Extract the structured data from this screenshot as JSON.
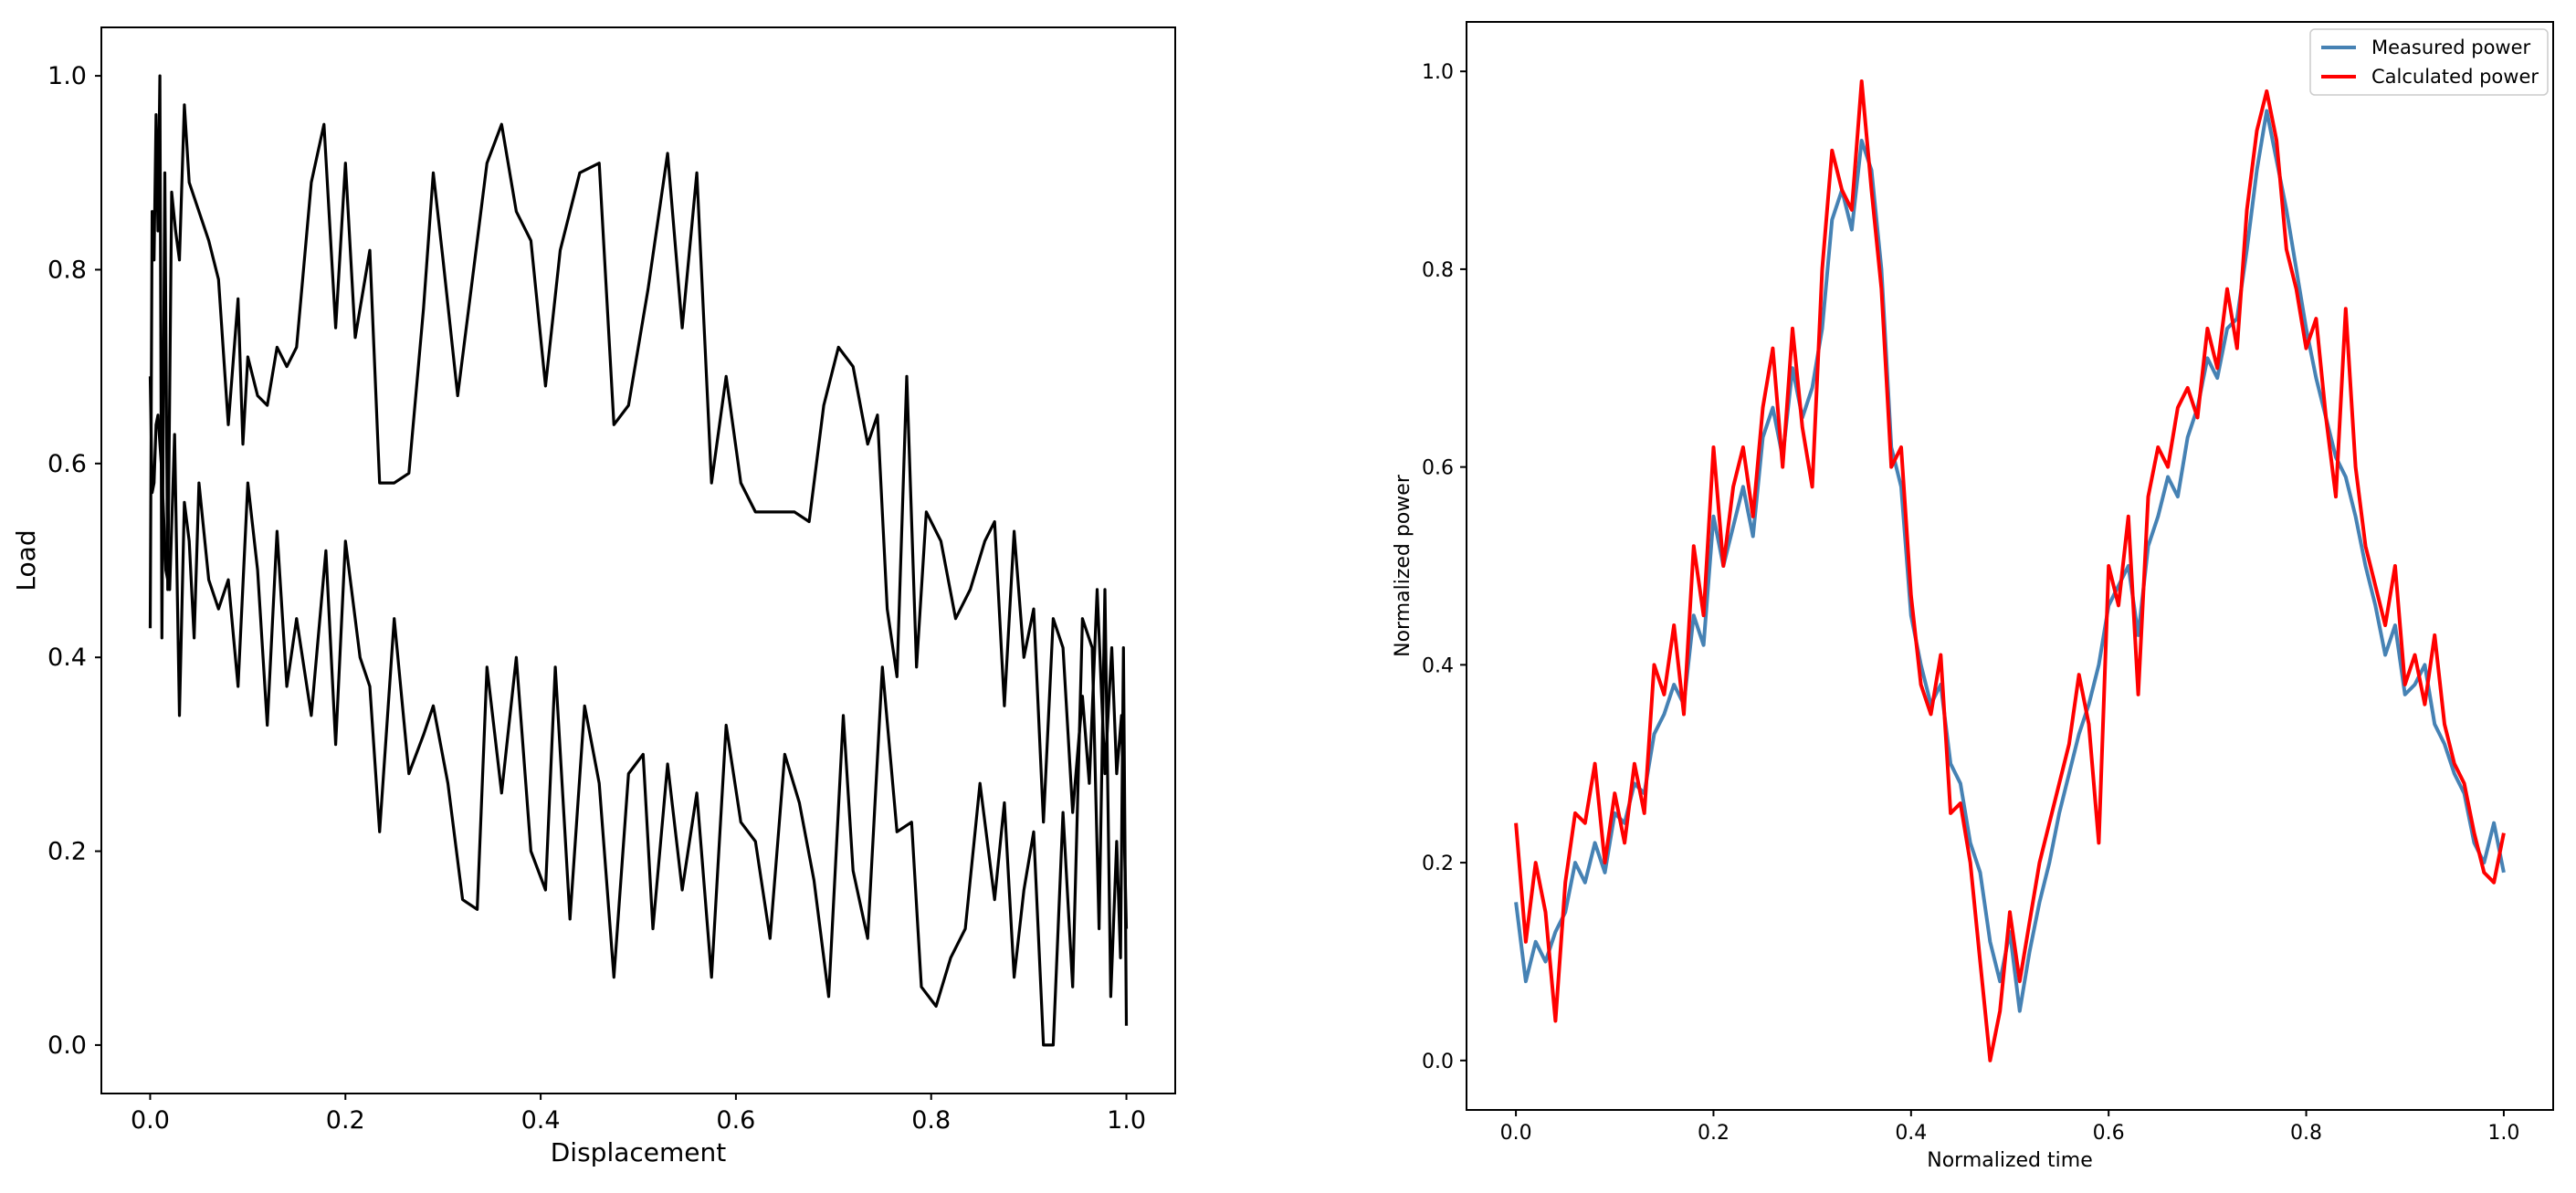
{
  "chart_data": [
    {
      "type": "line",
      "title": "",
      "xlabel": "Displacement",
      "ylabel": "Load",
      "xlim": [
        -0.05,
        1.05
      ],
      "ylim": [
        -0.05,
        1.05
      ],
      "x_ticks": [
        "0.0",
        "0.2",
        "0.4",
        "0.6",
        "0.8",
        "1.0"
      ],
      "y_ticks": [
        "0.0",
        "0.2",
        "0.4",
        "0.6",
        "0.8",
        "1.0"
      ],
      "grid": false,
      "legend": "none",
      "colors": {
        "line": "#000000"
      },
      "series": [
        {
          "x": [
            0.0,
            0.002,
            0.004,
            0.006,
            0.008,
            0.01,
            0.012,
            0.015,
            0.018,
            0.022,
            0.026,
            0.03,
            0.035,
            0.04,
            0.05,
            0.06,
            0.07,
            0.08,
            0.09,
            0.095,
            0.1,
            0.11,
            0.12,
            0.13,
            0.14,
            0.15,
            0.165,
            0.178,
            0.19,
            0.2,
            0.21,
            0.225,
            0.235,
            0.25,
            0.265,
            0.28,
            0.29,
            0.3,
            0.315,
            0.33,
            0.345,
            0.36,
            0.375,
            0.39,
            0.405,
            0.42,
            0.44,
            0.46,
            0.475,
            0.49,
            0.51,
            0.53,
            0.545,
            0.56,
            0.575,
            0.59,
            0.605,
            0.62,
            0.64,
            0.66,
            0.675,
            0.69,
            0.705,
            0.72,
            0.735,
            0.745,
            0.755,
            0.765,
            0.775,
            0.785,
            0.795,
            0.81,
            0.825,
            0.84,
            0.855,
            0.865,
            0.875,
            0.885,
            0.895,
            0.905,
            0.915,
            0.925,
            0.935,
            0.945,
            0.955,
            0.962,
            0.97,
            0.978,
            0.985,
            0.99,
            0.995,
            1.0
          ],
          "y": [
            0.43,
            0.86,
            0.81,
            0.96,
            0.84,
            1.0,
            0.42,
            0.9,
            0.47,
            0.88,
            0.84,
            0.81,
            0.97,
            0.89,
            0.86,
            0.83,
            0.79,
            0.64,
            0.77,
            0.62,
            0.71,
            0.67,
            0.66,
            0.72,
            0.7,
            0.72,
            0.89,
            0.95,
            0.74,
            0.91,
            0.73,
            0.82,
            0.58,
            0.58,
            0.59,
            0.76,
            0.9,
            0.81,
            0.67,
            0.79,
            0.91,
            0.95,
            0.86,
            0.83,
            0.68,
            0.82,
            0.9,
            0.91,
            0.64,
            0.66,
            0.78,
            0.92,
            0.74,
            0.9,
            0.58,
            0.69,
            0.58,
            0.55,
            0.55,
            0.55,
            0.54,
            0.66,
            0.72,
            0.7,
            0.62,
            0.65,
            0.45,
            0.38,
            0.69,
            0.39,
            0.55,
            0.52,
            0.44,
            0.47,
            0.52,
            0.54,
            0.35,
            0.53,
            0.4,
            0.45,
            0.23,
            0.44,
            0.41,
            0.24,
            0.36,
            0.27,
            0.47,
            0.28,
            0.41,
            0.28,
            0.34,
            0.12
          ]
        },
        {
          "x": [
            0.0,
            0.002,
            0.004,
            0.006,
            0.008,
            0.012,
            0.016,
            0.02,
            0.025,
            0.03,
            0.035,
            0.04,
            0.045,
            0.05,
            0.06,
            0.07,
            0.08,
            0.09,
            0.1,
            0.11,
            0.12,
            0.13,
            0.14,
            0.15,
            0.165,
            0.18,
            0.19,
            0.2,
            0.215,
            0.225,
            0.235,
            0.25,
            0.265,
            0.28,
            0.29,
            0.305,
            0.32,
            0.335,
            0.345,
            0.36,
            0.375,
            0.39,
            0.405,
            0.415,
            0.43,
            0.445,
            0.46,
            0.475,
            0.49,
            0.505,
            0.515,
            0.53,
            0.545,
            0.56,
            0.575,
            0.59,
            0.605,
            0.62,
            0.635,
            0.65,
            0.665,
            0.68,
            0.695,
            0.71,
            0.72,
            0.735,
            0.75,
            0.765,
            0.78,
            0.79,
            0.805,
            0.82,
            0.835,
            0.85,
            0.865,
            0.875,
            0.885,
            0.895,
            0.905,
            0.915,
            0.925,
            0.935,
            0.945,
            0.955,
            0.965,
            0.972,
            0.978,
            0.984,
            0.99,
            0.994,
            0.997,
            1.0
          ],
          "y": [
            0.69,
            0.57,
            0.58,
            0.64,
            0.65,
            0.59,
            0.49,
            0.47,
            0.63,
            0.34,
            0.56,
            0.52,
            0.42,
            0.58,
            0.48,
            0.45,
            0.48,
            0.37,
            0.58,
            0.49,
            0.33,
            0.53,
            0.37,
            0.44,
            0.34,
            0.51,
            0.31,
            0.52,
            0.4,
            0.37,
            0.22,
            0.44,
            0.28,
            0.32,
            0.35,
            0.27,
            0.15,
            0.14,
            0.39,
            0.26,
            0.4,
            0.2,
            0.16,
            0.39,
            0.13,
            0.35,
            0.27,
            0.07,
            0.28,
            0.3,
            0.12,
            0.29,
            0.16,
            0.26,
            0.07,
            0.33,
            0.23,
            0.21,
            0.11,
            0.3,
            0.25,
            0.17,
            0.05,
            0.34,
            0.18,
            0.11,
            0.39,
            0.22,
            0.23,
            0.06,
            0.04,
            0.09,
            0.12,
            0.27,
            0.15,
            0.25,
            0.07,
            0.16,
            0.22,
            0.0,
            0.0,
            0.24,
            0.06,
            0.44,
            0.41,
            0.12,
            0.47,
            0.05,
            0.21,
            0.09,
            0.41,
            0.02
          ]
        }
      ]
    },
    {
      "type": "line",
      "title": "",
      "xlabel": "Normalized time",
      "ylabel": "Normalized power",
      "xlim": [
        -0.05,
        1.05
      ],
      "ylim": [
        -0.05,
        1.05
      ],
      "x_ticks": [
        "0.0",
        "0.2",
        "0.4",
        "0.6",
        "0.8",
        "1.0"
      ],
      "y_ticks": [
        "0.0",
        "0.2",
        "0.4",
        "0.6",
        "0.8",
        "1.0"
      ],
      "grid": false,
      "legend": "top-right",
      "series": [
        {
          "name": "Measured power",
          "color": "#4682b4",
          "x": [
            0.0,
            0.01,
            0.02,
            0.03,
            0.04,
            0.05,
            0.06,
            0.07,
            0.08,
            0.09,
            0.1,
            0.11,
            0.12,
            0.13,
            0.14,
            0.15,
            0.16,
            0.17,
            0.18,
            0.19,
            0.2,
            0.21,
            0.22,
            0.23,
            0.24,
            0.25,
            0.26,
            0.27,
            0.28,
            0.29,
            0.3,
            0.31,
            0.32,
            0.33,
            0.34,
            0.35,
            0.36,
            0.37,
            0.38,
            0.39,
            0.4,
            0.41,
            0.42,
            0.43,
            0.44,
            0.45,
            0.46,
            0.47,
            0.48,
            0.49,
            0.5,
            0.51,
            0.52,
            0.53,
            0.54,
            0.55,
            0.56,
            0.57,
            0.58,
            0.59,
            0.6,
            0.61,
            0.62,
            0.63,
            0.64,
            0.65,
            0.66,
            0.67,
            0.68,
            0.69,
            0.7,
            0.71,
            0.72,
            0.73,
            0.74,
            0.75,
            0.76,
            0.77,
            0.78,
            0.79,
            0.8,
            0.81,
            0.82,
            0.83,
            0.84,
            0.85,
            0.86,
            0.87,
            0.88,
            0.89,
            0.9,
            0.91,
            0.92,
            0.93,
            0.94,
            0.95,
            0.96,
            0.97,
            0.98,
            0.99,
            1.0
          ],
          "y": [
            0.16,
            0.08,
            0.12,
            0.1,
            0.13,
            0.15,
            0.2,
            0.18,
            0.22,
            0.19,
            0.25,
            0.24,
            0.28,
            0.27,
            0.33,
            0.35,
            0.38,
            0.36,
            0.45,
            0.42,
            0.55,
            0.5,
            0.54,
            0.58,
            0.53,
            0.63,
            0.66,
            0.61,
            0.7,
            0.65,
            0.68,
            0.74,
            0.85,
            0.88,
            0.84,
            0.93,
            0.9,
            0.8,
            0.62,
            0.58,
            0.45,
            0.4,
            0.36,
            0.38,
            0.3,
            0.28,
            0.22,
            0.19,
            0.12,
            0.08,
            0.13,
            0.05,
            0.11,
            0.16,
            0.2,
            0.25,
            0.29,
            0.33,
            0.36,
            0.4,
            0.46,
            0.48,
            0.5,
            0.43,
            0.52,
            0.55,
            0.59,
            0.57,
            0.63,
            0.66,
            0.71,
            0.69,
            0.74,
            0.75,
            0.82,
            0.9,
            0.96,
            0.91,
            0.86,
            0.8,
            0.74,
            0.69,
            0.65,
            0.61,
            0.59,
            0.55,
            0.5,
            0.46,
            0.41,
            0.44,
            0.37,
            0.38,
            0.4,
            0.34,
            0.32,
            0.29,
            0.27,
            0.22,
            0.2,
            0.24,
            0.19
          ]
        },
        {
          "name": "Calculated power",
          "color": "#ff0000",
          "x": [
            0.0,
            0.01,
            0.02,
            0.03,
            0.04,
            0.05,
            0.06,
            0.07,
            0.08,
            0.09,
            0.1,
            0.11,
            0.12,
            0.13,
            0.14,
            0.15,
            0.16,
            0.17,
            0.18,
            0.19,
            0.2,
            0.21,
            0.22,
            0.23,
            0.24,
            0.25,
            0.26,
            0.27,
            0.28,
            0.29,
            0.3,
            0.31,
            0.32,
            0.33,
            0.34,
            0.35,
            0.36,
            0.37,
            0.38,
            0.39,
            0.4,
            0.41,
            0.42,
            0.43,
            0.44,
            0.45,
            0.46,
            0.47,
            0.48,
            0.49,
            0.5,
            0.51,
            0.52,
            0.53,
            0.54,
            0.55,
            0.56,
            0.57,
            0.58,
            0.59,
            0.6,
            0.61,
            0.62,
            0.63,
            0.64,
            0.65,
            0.66,
            0.67,
            0.68,
            0.69,
            0.7,
            0.71,
            0.72,
            0.73,
            0.74,
            0.75,
            0.76,
            0.77,
            0.78,
            0.79,
            0.8,
            0.81,
            0.82,
            0.83,
            0.84,
            0.85,
            0.86,
            0.87,
            0.88,
            0.89,
            0.9,
            0.91,
            0.92,
            0.93,
            0.94,
            0.95,
            0.96,
            0.97,
            0.98,
            0.99,
            1.0
          ],
          "y": [
            0.24,
            0.12,
            0.2,
            0.15,
            0.04,
            0.18,
            0.25,
            0.24,
            0.3,
            0.2,
            0.27,
            0.22,
            0.3,
            0.25,
            0.4,
            0.37,
            0.44,
            0.35,
            0.52,
            0.45,
            0.62,
            0.5,
            0.58,
            0.62,
            0.55,
            0.66,
            0.72,
            0.6,
            0.74,
            0.64,
            0.58,
            0.8,
            0.92,
            0.88,
            0.86,
            0.99,
            0.88,
            0.78,
            0.6,
            0.62,
            0.47,
            0.38,
            0.35,
            0.41,
            0.25,
            0.26,
            0.2,
            0.1,
            0.0,
            0.05,
            0.15,
            0.08,
            0.14,
            0.2,
            0.24,
            0.28,
            0.32,
            0.39,
            0.34,
            0.22,
            0.5,
            0.46,
            0.55,
            0.37,
            0.57,
            0.62,
            0.6,
            0.66,
            0.68,
            0.65,
            0.74,
            0.7,
            0.78,
            0.72,
            0.86,
            0.94,
            0.98,
            0.93,
            0.82,
            0.78,
            0.72,
            0.75,
            0.65,
            0.57,
            0.76,
            0.6,
            0.52,
            0.48,
            0.44,
            0.5,
            0.38,
            0.41,
            0.36,
            0.43,
            0.34,
            0.3,
            0.28,
            0.23,
            0.19,
            0.18,
            0.23
          ]
        }
      ]
    }
  ]
}
